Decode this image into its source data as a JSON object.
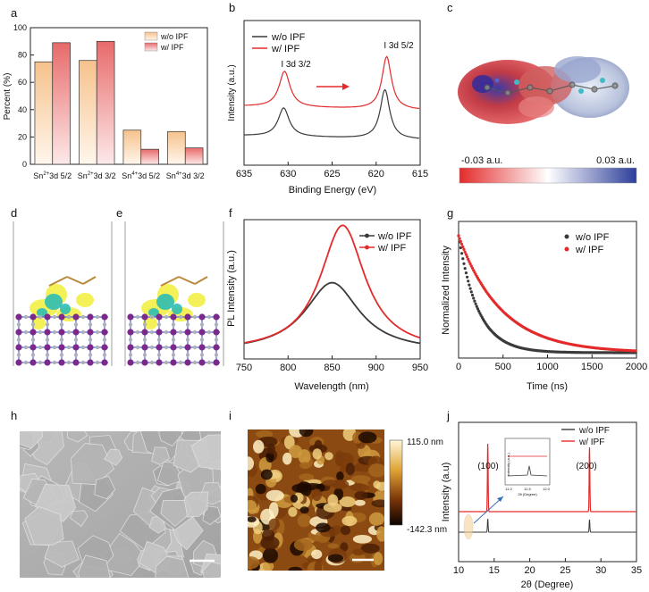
{
  "panel_letters": [
    "a",
    "b",
    "c",
    "d",
    "e",
    "f",
    "g",
    "h",
    "i",
    "j"
  ],
  "colors": {
    "red": "#e32b2b",
    "black": "#3a3a3a",
    "peach": "#f6c28c",
    "pink": "#f08d8d"
  },
  "chart_data": [
    {
      "id": "a",
      "type": "bar",
      "ylabel": "Percent (%)",
      "ylim": [
        0,
        100
      ],
      "yticks": [
        0,
        20,
        40,
        60,
        80,
        100
      ],
      "categories": [
        "Sn2+ 3d 5/2",
        "Sn2+ 3d 3/2",
        "Sn4+ 3d 5/2",
        "Sn4+ 3d 3/2"
      ],
      "category_labels": [
        {
          "ion": "Sn",
          "sup": "2+",
          "rest": "3d 5/2"
        },
        {
          "ion": "Sn",
          "sup": "2+",
          "rest": "3d 3/2"
        },
        {
          "ion": "Sn",
          "sup": "4+",
          "rest": "3d 5/2"
        },
        {
          "ion": "Sn",
          "sup": "4+",
          "rest": "3d 3/2"
        }
      ],
      "legend_position": "top-right",
      "series": [
        {
          "name": "w/o IPF",
          "values": [
            75,
            76,
            25,
            24
          ]
        },
        {
          "name": "w/ IPF",
          "values": [
            89,
            90,
            11,
            12
          ]
        }
      ]
    },
    {
      "id": "b",
      "type": "line",
      "xlabel": "Binding Energy (eV)",
      "ylabel": "Intensity (a.u.)",
      "xlim": [
        635,
        615
      ],
      "xticks": [
        635,
        630,
        625,
        620,
        615
      ],
      "legend_position": "top-left",
      "annotations": [
        "I 3d 3/2",
        "I 3d 5/2"
      ],
      "series": [
        {
          "name": "w/o IPF",
          "peaks": [
            630.5,
            619.0
          ]
        },
        {
          "name": "w/ IPF",
          "peaks": [
            630.4,
            618.8
          ]
        }
      ]
    },
    {
      "id": "c",
      "type": "heatmap",
      "colorbar_labels": [
        "-0.03 a.u.",
        "0.03 a.u."
      ]
    },
    {
      "id": "f",
      "type": "line",
      "xlabel": "Wavelength (nm)",
      "ylabel": "PL Intensity (a.u.)",
      "xlim": [
        750,
        950
      ],
      "xticks": [
        750,
        800,
        850,
        900,
        950
      ],
      "legend_position": "top-right",
      "series": [
        {
          "name": "w/o IPF",
          "peak_x": 850,
          "peak_y": 0.53,
          "fwhm": 75
        },
        {
          "name": "w/ IPF",
          "peak_x": 862,
          "peak_y": 0.97,
          "fwhm": 62
        }
      ]
    },
    {
      "id": "g",
      "type": "scatter",
      "xlabel": "Time (ns)",
      "ylabel": "Normalized Intensity",
      "xlim": [
        0,
        2000
      ],
      "xticks": [
        0,
        500,
        1000,
        1500,
        2000
      ],
      "legend_position": "top-right",
      "series": [
        {
          "name": "w/o IPF",
          "tau_ns": 220
        },
        {
          "name": "w/ IPF",
          "tau_ns": 480
        }
      ]
    },
    {
      "id": "i",
      "type": "heatmap",
      "colorbar_labels": [
        "115.0 nm",
        "-142.3 nm"
      ]
    },
    {
      "id": "j",
      "type": "line",
      "xlabel": "2θ (Degree)",
      "ylabel": "Intensity (a.u)",
      "xlim": [
        10,
        35
      ],
      "xticks": [
        10,
        15,
        20,
        25,
        30,
        35
      ],
      "legend_position": "top-right",
      "annotations": [
        "(100)",
        "(200)"
      ],
      "inset": {
        "xlabel": "2θ (Degree)",
        "ylabel": "Intensity (a.u.)",
        "xticks": [
          "11.0",
          "11.5",
          "12.0"
        ]
      },
      "series": [
        {
          "name": "w/o IPF",
          "peaks": [
            14.1,
            28.4
          ]
        },
        {
          "name": "w/ IPF",
          "peaks": [
            14.1,
            28.4
          ]
        }
      ]
    }
  ]
}
